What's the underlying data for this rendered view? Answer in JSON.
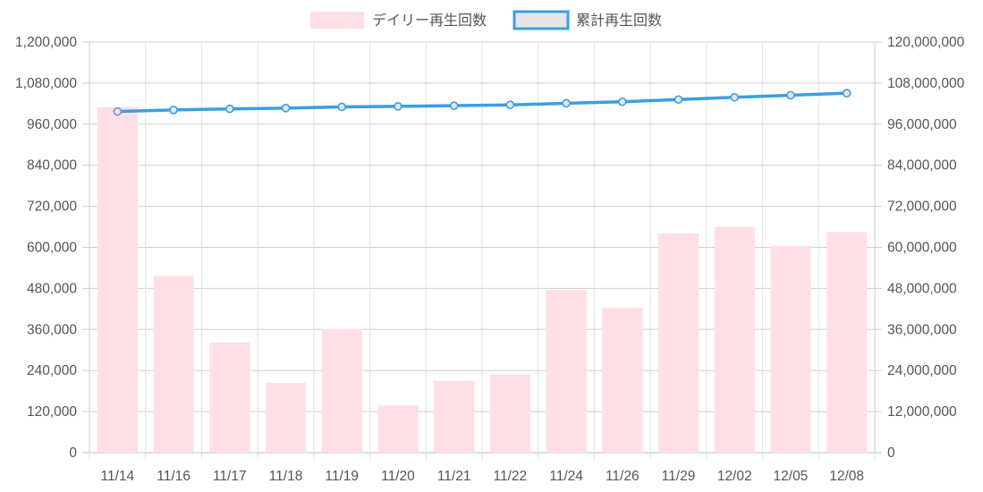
{
  "chart_data": {
    "type": "bar",
    "categories": [
      "11/14",
      "11/16",
      "11/17",
      "11/18",
      "11/19",
      "11/20",
      "11/21",
      "11/22",
      "11/24",
      "11/26",
      "11/29",
      "12/02",
      "12/05",
      "12/08"
    ],
    "series": [
      {
        "name": "デイリー再生回数",
        "type": "bar",
        "axis": "left",
        "color": "#ffdfe5",
        "values": [
          1010000,
          516000,
          322000,
          204000,
          362000,
          138000,
          210000,
          228000,
          476000,
          423000,
          641000,
          660000,
          604000,
          645000
        ]
      },
      {
        "name": "累計再生回数",
        "type": "line",
        "axis": "right",
        "color": "#3a9ee6",
        "values": [
          99700000,
          100150000,
          100470000,
          100700000,
          101050000,
          101200000,
          101400000,
          101650000,
          102100000,
          102550000,
          103200000,
          103850000,
          104450000,
          105050000
        ]
      }
    ],
    "y_left": {
      "min": 0,
      "max": 1200000,
      "ticks": [
        "0",
        "120,000",
        "240,000",
        "360,000",
        "480,000",
        "600,000",
        "720,000",
        "840,000",
        "960,000",
        "1,080,000",
        "1,200,000"
      ]
    },
    "y_right": {
      "min": 0,
      "max": 120000000,
      "ticks": [
        "0",
        "12,000,000",
        "24,000,000",
        "36,000,000",
        "48,000,000",
        "60,000,000",
        "72,000,000",
        "84,000,000",
        "96,000,000",
        "108,000,000",
        "120,000,000"
      ]
    },
    "grid": true,
    "legend_position": "top"
  }
}
